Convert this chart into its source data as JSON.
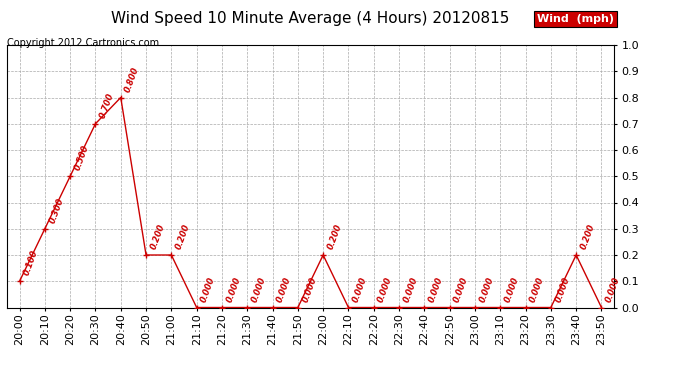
{
  "title": "Wind Speed 10 Minute Average (4 Hours) 20120815",
  "copyright": "Copyright 2012 Cartronics.com",
  "legend_label": "Wind  (mph)",
  "x_labels": [
    "20:00",
    "20:10",
    "20:20",
    "20:30",
    "20:40",
    "20:50",
    "21:00",
    "21:10",
    "21:20",
    "21:30",
    "21:40",
    "21:50",
    "22:00",
    "22:10",
    "22:20",
    "22:30",
    "22:40",
    "22:50",
    "23:00",
    "23:10",
    "23:20",
    "23:30",
    "23:40",
    "23:50"
  ],
  "y_values": [
    0.1,
    0.3,
    0.5,
    0.7,
    0.8,
    0.2,
    0.2,
    0.0,
    0.0,
    0.0,
    0.0,
    0.0,
    0.2,
    0.0,
    0.0,
    0.0,
    0.0,
    0.0,
    0.0,
    0.0,
    0.0,
    0.0,
    0.2,
    0.0
  ],
  "line_color": "#cc0000",
  "marker_color": "#cc0000",
  "label_color": "#cc0000",
  "legend_bg": "#cc0000",
  "legend_text_color": "#ffffff",
  "bg_color": "#ffffff",
  "grid_color": "#aaaaaa",
  "ylim": [
    0.0,
    1.0
  ],
  "yticks": [
    0.0,
    0.1,
    0.2,
    0.3,
    0.4,
    0.5,
    0.6,
    0.7,
    0.8,
    0.9,
    1.0
  ],
  "title_fontsize": 11,
  "copyright_fontsize": 7,
  "label_fontsize": 6,
  "tick_fontsize": 8,
  "legend_fontsize": 8
}
